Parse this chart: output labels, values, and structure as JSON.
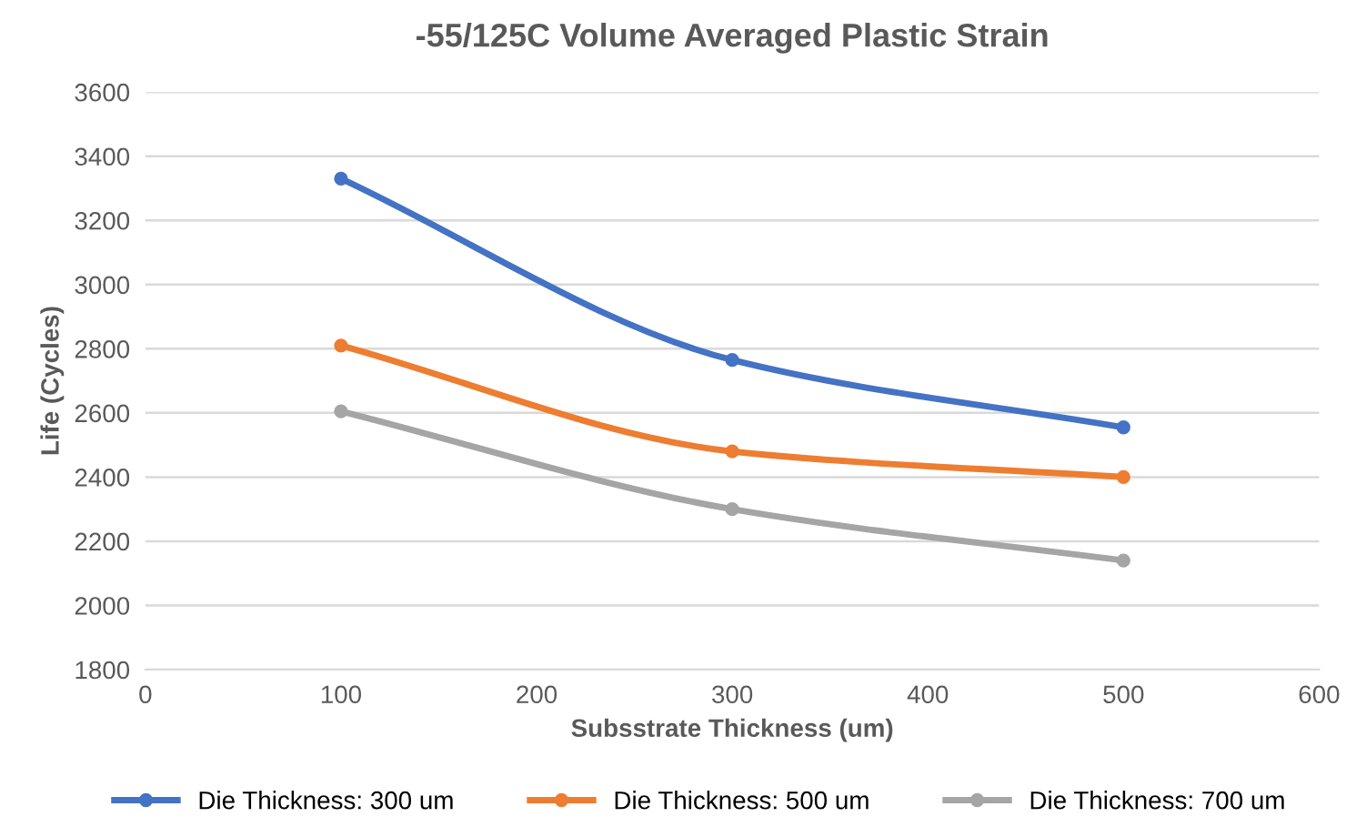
{
  "chart_data": {
    "type": "line",
    "title": "-55/125C Volume Averaged Plastic Strain",
    "xlabel": "Subsstrate Thickness (um)",
    "ylabel": "Life (Cycles)",
    "x": [
      100,
      300,
      500
    ],
    "series": [
      {
        "name": "Die Thickness: 300 um",
        "color": "#4472c4",
        "values": [
          3330,
          2765,
          2555
        ]
      },
      {
        "name": "Die Thickness: 500 um",
        "color": "#ed7d31",
        "values": [
          2810,
          2480,
          2400
        ]
      },
      {
        "name": "Die Thickness: 700 um",
        "color": "#a5a5a5",
        "values": [
          2605,
          2300,
          2140
        ]
      }
    ],
    "xlim": [
      0,
      600
    ],
    "xticks": [
      0,
      100,
      200,
      300,
      400,
      500,
      600
    ],
    "ylim": [
      1800,
      3600
    ],
    "yticks": [
      1800,
      2000,
      2200,
      2400,
      2600,
      2800,
      3000,
      3200,
      3400,
      3600
    ],
    "grid": "y",
    "legend": "bottom",
    "marker": "circle",
    "line_style": "solid"
  }
}
